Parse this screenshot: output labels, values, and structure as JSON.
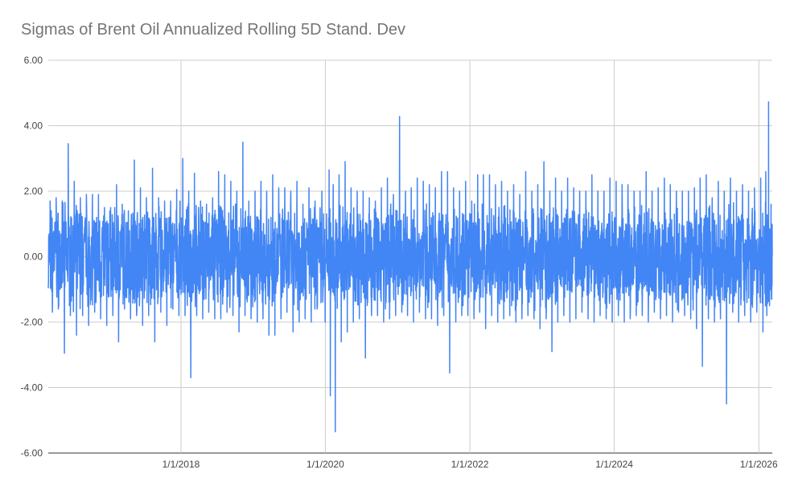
{
  "chart_data": {
    "type": "line",
    "title": "Sigmas of Brent Oil Annualized Rolling 5D Stand. Dev",
    "xlabel": "",
    "ylabel": "",
    "ylim": [
      -6,
      6
    ],
    "xlim": [
      "2016-03-01",
      "2026-03-10"
    ],
    "y_ticks": [
      "6.00",
      "4.00",
      "2.00",
      "0.00",
      "-2.00",
      "-4.00",
      "-6.00"
    ],
    "x_ticks": [
      "1/1/2018",
      "1/1/2020",
      "1/1/2022",
      "1/1/2024",
      "1/1/2026"
    ],
    "grid": true,
    "legend": "none",
    "series": [
      {
        "color": "#4285f4",
        "x": [
          "2016-03-01",
          "2016-04-01",
          "2016-05-01",
          "2016-06-01",
          "2016-07-01",
          "2016-08-01",
          "2016-09-01",
          "2016-10-01",
          "2016-11-01",
          "2016-12-01",
          "2017-01-01",
          "2017-02-01",
          "2017-03-01",
          "2017-04-01",
          "2017-05-01",
          "2017-06-01",
          "2017-07-01",
          "2017-08-01",
          "2017-09-01",
          "2017-10-01",
          "2017-11-01",
          "2017-12-01",
          "2018-01-01",
          "2018-02-01",
          "2018-03-01",
          "2018-04-01",
          "2018-05-01",
          "2018-06-01",
          "2018-07-01",
          "2018-08-01",
          "2018-09-01",
          "2018-10-01",
          "2018-11-01",
          "2018-12-01",
          "2019-01-01",
          "2019-02-01",
          "2019-03-01",
          "2019-04-01",
          "2019-05-01",
          "2019-06-01",
          "2019-07-01",
          "2019-08-01",
          "2019-09-01",
          "2019-10-01",
          "2019-11-01",
          "2019-12-01",
          "2020-01-15",
          "2020-02-01",
          "2020-03-01",
          "2020-04-01",
          "2020-05-01",
          "2020-06-01",
          "2020-07-01",
          "2020-08-01",
          "2020-09-01",
          "2020-10-01",
          "2020-11-01",
          "2020-12-01",
          "2021-01-01",
          "2021-02-01",
          "2021-03-01",
          "2021-04-01",
          "2021-05-01",
          "2021-06-01",
          "2021-07-01",
          "2021-08-01",
          "2021-09-01",
          "2021-10-01",
          "2021-11-01",
          "2021-12-01",
          "2022-01-01",
          "2022-02-01",
          "2022-03-01",
          "2022-04-01",
          "2022-05-01",
          "2022-06-01",
          "2022-07-01",
          "2022-08-01",
          "2022-09-01",
          "2022-10-01",
          "2022-11-01",
          "2022-12-01",
          "2023-01-01",
          "2023-02-01",
          "2023-03-01",
          "2023-04-01",
          "2023-05-01",
          "2023-06-01",
          "2023-07-01",
          "2023-08-01",
          "2023-09-01",
          "2023-10-01",
          "2023-11-01",
          "2023-12-01",
          "2024-01-01",
          "2024-02-01",
          "2024-03-01",
          "2024-04-01",
          "2024-05-01",
          "2024-06-01",
          "2024-07-01",
          "2024-08-01",
          "2024-09-01",
          "2024-10-01",
          "2024-11-01",
          "2024-12-01",
          "2025-01-01",
          "2025-02-01",
          "2025-03-01",
          "2025-04-01",
          "2025-05-01",
          "2025-06-01",
          "2025-07-01",
          "2025-08-01",
          "2025-09-01",
          "2025-10-01",
          "2025-11-01",
          "2025-12-01",
          "2026-01-01",
          "2026-02-01",
          "2026-02-15",
          "2026-03-01"
        ],
        "high": [
          1.7,
          1.8,
          1.7,
          3.45,
          2.3,
          1.8,
          1.9,
          1.9,
          1.9,
          1.5,
          1.5,
          2.2,
          1.6,
          1.4,
          2.95,
          2.1,
          1.8,
          2.7,
          1.8,
          1.7,
          1.7,
          2.05,
          3.0,
          2.0,
          2.55,
          1.7,
          1.6,
          1.8,
          2.6,
          2.5,
          2.3,
          2.0,
          3.5,
          1.7,
          2.0,
          2.3,
          2.0,
          2.5,
          2.1,
          2.1,
          2.0,
          2.3,
          1.6,
          2.1,
          1.7,
          2.0,
          2.65,
          2.2,
          2.5,
          2.9,
          2.1,
          2.0,
          2.0,
          1.8,
          1.7,
          2.1,
          2.4,
          1.9,
          4.28,
          2.0,
          2.1,
          2.4,
          2.3,
          2.2,
          2.1,
          2.6,
          2.6,
          2.1,
          2.0,
          2.3,
          1.7,
          2.5,
          2.5,
          2.5,
          2.2,
          2.3,
          2.0,
          2.2,
          1.9,
          2.6,
          2.0,
          2.2,
          2.9,
          2.0,
          2.4,
          2.0,
          2.4,
          2.1,
          2.0,
          2.0,
          2.5,
          2.0,
          2.0,
          2.4,
          2.3,
          2.2,
          2.2,
          2.0,
          2.0,
          2.6,
          2.0,
          2.1,
          2.4,
          2.2,
          2.0,
          2.0,
          2.0,
          2.1,
          2.4,
          2.5,
          1.8,
          2.3,
          2.0,
          2.4,
          2.0,
          2.2,
          2.0,
          2.1,
          2.4,
          2.6,
          4.73,
          1.6
        ],
        "low": [
          -1.7,
          -1.6,
          -2.95,
          -1.8,
          -2.4,
          -1.8,
          -2.1,
          -1.7,
          -1.9,
          -2.1,
          -1.8,
          -2.6,
          -1.6,
          -1.9,
          -1.8,
          -2.1,
          -1.8,
          -2.6,
          -1.7,
          -2.1,
          -1.6,
          -1.8,
          -1.8,
          -3.7,
          -1.8,
          -1.9,
          -1.7,
          -1.9,
          -1.9,
          -1.7,
          -1.8,
          -2.3,
          -1.8,
          -1.9,
          -2.0,
          -1.9,
          -2.4,
          -2.4,
          -1.9,
          -1.7,
          -2.3,
          -2.0,
          -1.9,
          -2.0,
          -1.6,
          -2.0,
          -4.25,
          -5.35,
          -2.6,
          -2.3,
          -2.0,
          -1.9,
          -3.1,
          -1.8,
          -1.8,
          -2.0,
          -1.9,
          -1.8,
          -1.7,
          -1.8,
          -2.0,
          -1.7,
          -1.9,
          -1.9,
          -2.1,
          -1.8,
          -3.55,
          -2.0,
          -1.8,
          -1.8,
          -1.9,
          -1.7,
          -2.2,
          -1.8,
          -2.0,
          -1.9,
          -1.8,
          -2.0,
          -1.9,
          -1.8,
          -1.9,
          -2.2,
          -1.9,
          -2.9,
          -2.0,
          -1.8,
          -2.0,
          -1.9,
          -1.7,
          -1.9,
          -2.0,
          -1.8,
          -1.9,
          -2.0,
          -1.8,
          -2.0,
          -1.9,
          -1.8,
          -1.8,
          -2.0,
          -1.7,
          -1.9,
          -1.8,
          -2.0,
          -1.7,
          -1.8,
          -1.9,
          -2.2,
          -3.35,
          -1.9,
          -2.0,
          -1.9,
          -4.5,
          -1.7,
          -2.0,
          -1.8,
          -2.0,
          -1.7,
          -2.3,
          -1.8,
          -1.5,
          -1.3
        ]
      }
    ]
  }
}
